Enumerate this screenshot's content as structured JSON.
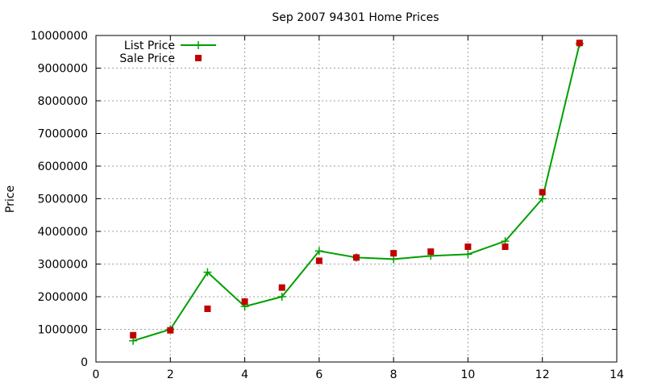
{
  "chart_data": {
    "type": "line",
    "title": "Sep 2007 94301 Home Prices",
    "xlabel": "",
    "ylabel": "Price",
    "xlim": [
      0,
      14
    ],
    "ylim": [
      0,
      10000000
    ],
    "xticks": [
      0,
      2,
      4,
      6,
      8,
      10,
      12,
      14
    ],
    "yticks": [
      0,
      1000000,
      2000000,
      3000000,
      4000000,
      5000000,
      6000000,
      7000000,
      8000000,
      9000000,
      10000000
    ],
    "grid": true,
    "legend_position": "top-left",
    "series": [
      {
        "name": "List Price",
        "style": "linespoints",
        "color": "#00a000",
        "marker": "plus",
        "points": [
          [
            1,
            650000
          ],
          [
            2,
            1000000
          ],
          [
            3,
            2750000
          ],
          [
            4,
            1700000
          ],
          [
            5,
            2000000
          ],
          [
            6,
            3400000
          ],
          [
            7,
            3200000
          ],
          [
            8,
            3150000
          ],
          [
            9,
            3250000
          ],
          [
            10,
            3300000
          ],
          [
            11,
            3700000
          ],
          [
            12,
            5000000
          ],
          [
            13,
            9750000
          ]
        ]
      },
      {
        "name": "Sale Price",
        "style": "points",
        "color": "#c00000",
        "marker": "square",
        "points": [
          [
            1,
            820000
          ],
          [
            2,
            970000
          ],
          [
            3,
            1630000
          ],
          [
            4,
            1850000
          ],
          [
            5,
            2280000
          ],
          [
            6,
            3100000
          ],
          [
            7,
            3200000
          ],
          [
            8,
            3330000
          ],
          [
            9,
            3380000
          ],
          [
            10,
            3530000
          ],
          [
            11,
            3530000
          ],
          [
            12,
            5200000
          ],
          [
            13,
            9770000
          ]
        ]
      }
    ]
  }
}
